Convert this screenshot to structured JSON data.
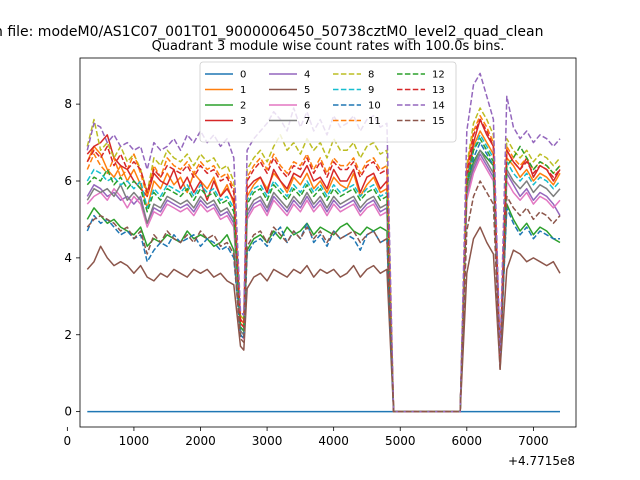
{
  "figure": {
    "suptitle": "n file: modeM0/AS1C07_001T01_9000006450_50738cztM0_level2_quad_clean",
    "title": "Quadrant 3 module wise count rates with 100.0s bins.",
    "x_offset_label": "+4.7715e8"
  },
  "chart_data": {
    "type": "line",
    "title": "Quadrant 3 module wise count rates with 100.0s bins.",
    "xlabel": "",
    "ylabel": "",
    "x_offset": 477150000,
    "xlim": [
      190,
      7640
    ],
    "ylim": [
      -0.4,
      9.2
    ],
    "xticks": [
      0,
      1000,
      2000,
      3000,
      4000,
      5000,
      6000,
      7000
    ],
    "yticks": [
      0,
      2,
      4,
      6,
      8
    ],
    "legend": {
      "placement": "top-center",
      "ncol": 4
    },
    "x": [
      300,
      400,
      500,
      600,
      700,
      800,
      900,
      1000,
      1100,
      1200,
      1300,
      1400,
      1500,
      1600,
      1700,
      1800,
      1900,
      2000,
      2100,
      2200,
      2300,
      2400,
      2500,
      2600,
      2650,
      2700,
      2800,
      2900,
      3000,
      3100,
      3200,
      3300,
      3400,
      3500,
      3600,
      3700,
      3800,
      3900,
      4000,
      4100,
      4200,
      4300,
      4400,
      4500,
      4600,
      4700,
      4800,
      4900,
      5000,
      5500,
      5900,
      6000,
      6100,
      6200,
      6300,
      6400,
      6500,
      6600,
      6700,
      6800,
      6900,
      7000,
      7100,
      7200,
      7300,
      7400
    ],
    "series": [
      {
        "name": "0",
        "color": "#1f77b4",
        "dash": false,
        "values": [
          0,
          0,
          0,
          0,
          0,
          0,
          0,
          0,
          0,
          0,
          0,
          0,
          0,
          0,
          0,
          0,
          0,
          0,
          0,
          0,
          0,
          0,
          0,
          0,
          0,
          0,
          0,
          0,
          0,
          0,
          0,
          0,
          0,
          0,
          0,
          0,
          0,
          0,
          0,
          0,
          0,
          0,
          0,
          0,
          0,
          0,
          0,
          0,
          0,
          0,
          0,
          0,
          0,
          0,
          0,
          0,
          0,
          0,
          0,
          0,
          0,
          0,
          0,
          0,
          0,
          0
        ]
      },
      {
        "name": "1",
        "color": "#ff7f0e",
        "dash": false,
        "values": [
          6.5,
          6.9,
          6.7,
          6.3,
          6.1,
          6.4,
          6.0,
          6.3,
          5.9,
          5.3,
          6.0,
          5.8,
          6.2,
          5.9,
          6.1,
          5.7,
          6.2,
          6.0,
          5.8,
          6.1,
          5.6,
          5.9,
          5.4,
          2.3,
          2.2,
          5.6,
          5.9,
          6.1,
          5.8,
          6.2,
          6.0,
          5.7,
          6.1,
          5.9,
          6.2,
          5.8,
          6.0,
          5.7,
          6.1,
          5.9,
          5.8,
          6.2,
          5.6,
          5.9,
          6.1,
          5.7,
          5.8,
          0,
          0,
          0,
          0,
          5.8,
          6.9,
          7.3,
          7.0,
          6.7,
          1.2,
          6.6,
          6.4,
          6.1,
          6.3,
          6.0,
          6.2,
          6.1,
          5.9,
          6.2
        ]
      },
      {
        "name": "2",
        "color": "#2ca02c",
        "dash": false,
        "values": [
          5.0,
          5.3,
          5.1,
          4.9,
          5.0,
          4.8,
          4.7,
          4.6,
          4.8,
          4.3,
          4.5,
          4.4,
          4.6,
          4.5,
          4.4,
          4.7,
          4.5,
          4.6,
          4.5,
          4.3,
          4.4,
          4.6,
          4.2,
          2.1,
          2.0,
          4.2,
          4.5,
          4.6,
          4.4,
          4.7,
          4.5,
          4.8,
          4.6,
          4.7,
          4.9,
          4.6,
          4.8,
          4.7,
          4.6,
          4.8,
          4.9,
          4.7,
          4.6,
          4.8,
          4.7,
          4.8,
          4.7,
          0,
          0,
          0,
          0,
          5.9,
          6.5,
          6.8,
          6.6,
          6.4,
          1.4,
          5.4,
          5.0,
          4.7,
          4.9,
          4.6,
          4.8,
          4.7,
          4.5,
          4.4
        ]
      },
      {
        "name": "3",
        "color": "#d62728",
        "dash": false,
        "values": [
          6.7,
          6.9,
          7.0,
          7.2,
          6.6,
          6.4,
          6.3,
          6.0,
          5.8,
          5.6,
          6.2,
          6.0,
          5.9,
          6.3,
          5.8,
          6.1,
          5.7,
          6.0,
          5.5,
          6.0,
          5.6,
          5.8,
          5.5,
          2.4,
          2.3,
          5.8,
          6.0,
          6.1,
          5.7,
          6.3,
          6.0,
          5.8,
          6.2,
          6.1,
          6.4,
          6.0,
          6.1,
          5.8,
          6.3,
          6.0,
          6.0,
          6.3,
          5.7,
          6.1,
          6.2,
          5.8,
          6.0,
          0,
          0,
          0,
          0,
          6.0,
          7.0,
          7.6,
          7.2,
          6.9,
          1.3,
          6.8,
          6.5,
          6.3,
          6.6,
          6.1,
          6.4,
          6.3,
          6.0,
          6.3
        ]
      },
      {
        "name": "4",
        "color": "#9467bd",
        "dash": false,
        "values": [
          5.6,
          5.9,
          5.8,
          5.6,
          5.7,
          5.5,
          5.6,
          5.4,
          5.6,
          4.9,
          5.3,
          5.2,
          5.5,
          5.4,
          5.3,
          5.4,
          5.2,
          5.5,
          5.3,
          5.4,
          5.1,
          5.2,
          4.9,
          2.0,
          1.9,
          5.1,
          5.4,
          5.5,
          5.2,
          5.6,
          5.4,
          5.2,
          5.5,
          5.3,
          5.6,
          5.3,
          5.5,
          5.2,
          5.5,
          5.3,
          5.4,
          5.5,
          5.2,
          5.4,
          5.5,
          5.2,
          5.3,
          0,
          0,
          0,
          0,
          5.6,
          6.3,
          6.7,
          6.4,
          6.1,
          1.2,
          6.2,
          5.9,
          5.6,
          5.8,
          5.5,
          5.7,
          5.6,
          5.4,
          5.1
        ]
      },
      {
        "name": "5",
        "color": "#8c564b",
        "dash": false,
        "values": [
          3.7,
          3.9,
          4.3,
          4.0,
          3.8,
          3.9,
          3.8,
          3.6,
          3.8,
          3.5,
          3.4,
          3.6,
          3.5,
          3.7,
          3.6,
          3.5,
          3.7,
          3.6,
          3.7,
          3.5,
          3.6,
          3.4,
          3.3,
          1.7,
          1.6,
          3.2,
          3.5,
          3.6,
          3.4,
          3.7,
          3.6,
          3.5,
          3.7,
          3.6,
          3.8,
          3.5,
          3.7,
          3.6,
          3.7,
          3.5,
          3.6,
          3.8,
          3.5,
          3.7,
          3.8,
          3.6,
          3.7,
          0,
          0,
          0,
          0,
          3.6,
          4.5,
          4.8,
          4.4,
          4.1,
          1.1,
          3.7,
          4.2,
          4.1,
          3.9,
          4.0,
          3.9,
          3.8,
          3.9,
          3.6
        ]
      },
      {
        "name": "6",
        "color": "#e377c2",
        "dash": false,
        "values": [
          5.4,
          5.6,
          5.7,
          5.5,
          5.8,
          5.6,
          5.3,
          5.6,
          5.4,
          4.8,
          5.2,
          5.1,
          5.4,
          5.3,
          5.2,
          5.3,
          5.1,
          5.4,
          5.2,
          5.3,
          5.0,
          5.1,
          4.8,
          2.0,
          1.9,
          5.0,
          5.3,
          5.4,
          5.1,
          5.5,
          5.3,
          5.1,
          5.4,
          5.2,
          5.5,
          5.2,
          5.4,
          5.1,
          5.4,
          5.2,
          5.3,
          5.4,
          5.1,
          5.3,
          5.4,
          5.1,
          5.2,
          0,
          0,
          0,
          0,
          5.5,
          6.2,
          6.6,
          6.3,
          6.0,
          1.2,
          6.0,
          5.7,
          5.5,
          5.7,
          5.4,
          5.6,
          5.5,
          5.3,
          5.5
        ]
      },
      {
        "name": "7",
        "color": "#7f7f7f",
        "dash": false,
        "values": [
          5.5,
          5.8,
          5.7,
          5.8,
          5.6,
          5.9,
          5.5,
          5.7,
          5.5,
          4.9,
          5.4,
          5.3,
          5.6,
          5.5,
          5.4,
          5.5,
          5.3,
          5.6,
          5.4,
          5.5,
          5.2,
          5.3,
          5.0,
          2.1,
          2.0,
          5.2,
          5.5,
          5.6,
          5.3,
          5.7,
          5.5,
          5.3,
          5.6,
          5.4,
          5.7,
          5.4,
          5.6,
          5.3,
          5.6,
          5.4,
          5.5,
          5.6,
          5.3,
          5.5,
          5.6,
          5.3,
          5.4,
          0,
          0,
          0,
          0,
          5.7,
          6.4,
          6.8,
          6.5,
          6.2,
          1.2,
          6.3,
          6.0,
          5.8,
          6.0,
          5.7,
          5.9,
          5.8,
          5.6,
          5.8
        ]
      },
      {
        "name": "8",
        "color": "#bcbd22",
        "dash": true,
        "values": [
          6.9,
          7.6,
          6.8,
          7.0,
          6.6,
          6.9,
          6.5,
          6.7,
          6.3,
          5.7,
          6.6,
          6.4,
          6.8,
          6.6,
          6.5,
          6.7,
          6.4,
          6.7,
          6.5,
          6.6,
          6.3,
          6.4,
          6.0,
          2.5,
          2.4,
          6.3,
          6.6,
          6.8,
          6.5,
          6.9,
          7.2,
          6.8,
          7.0,
          6.7,
          7.1,
          6.8,
          7.0,
          6.6,
          7.1,
          6.8,
          6.8,
          7.0,
          6.6,
          6.9,
          7.0,
          6.7,
          6.8,
          0,
          0,
          0,
          0,
          6.4,
          7.5,
          7.9,
          7.6,
          7.2,
          1.4,
          7.1,
          6.8,
          6.6,
          6.8,
          6.5,
          6.7,
          6.6,
          6.4,
          6.6
        ]
      },
      {
        "name": "9",
        "color": "#17becf",
        "dash": true,
        "values": [
          6.0,
          6.3,
          6.2,
          6.0,
          6.1,
          5.9,
          6.0,
          5.8,
          6.0,
          5.3,
          5.8,
          5.6,
          5.9,
          5.8,
          5.7,
          5.9,
          5.6,
          5.9,
          5.7,
          5.8,
          5.5,
          5.6,
          5.3,
          2.2,
          2.1,
          5.5,
          5.8,
          5.9,
          5.6,
          6.0,
          5.8,
          5.6,
          5.9,
          5.7,
          6.0,
          5.7,
          5.9,
          5.6,
          5.9,
          5.7,
          5.8,
          5.9,
          5.6,
          5.8,
          5.9,
          5.6,
          5.7,
          0,
          0,
          0,
          0,
          6.0,
          6.8,
          7.2,
          6.9,
          6.6,
          1.3,
          6.5,
          6.2,
          6.0,
          6.2,
          5.9,
          6.1,
          6.0,
          5.8,
          6.0
        ]
      },
      {
        "name": "10",
        "color": "#1f77b4",
        "dash": true,
        "values": [
          4.7,
          5.1,
          4.9,
          5.0,
          4.8,
          4.6,
          4.7,
          4.5,
          4.6,
          3.9,
          4.2,
          4.4,
          4.3,
          4.6,
          4.4,
          4.5,
          4.6,
          4.3,
          4.5,
          4.4,
          4.2,
          4.3,
          4.0,
          2.0,
          1.9,
          4.1,
          4.4,
          4.5,
          4.3,
          4.6,
          4.8,
          4.4,
          4.7,
          4.5,
          4.9,
          4.4,
          4.6,
          4.3,
          4.7,
          4.5,
          4.6,
          4.5,
          4.2,
          4.6,
          4.7,
          4.4,
          4.5,
          0,
          0,
          0,
          0,
          5.9,
          6.6,
          7.0,
          6.7,
          6.4,
          1.3,
          5.3,
          4.9,
          4.6,
          4.8,
          4.5,
          4.7,
          4.6,
          4.5,
          4.5
        ]
      },
      {
        "name": "11",
        "color": "#ff7f0e",
        "dash": true,
        "values": [
          6.3,
          6.7,
          6.4,
          6.2,
          6.6,
          6.1,
          6.3,
          6.7,
          6.2,
          5.6,
          6.4,
          6.1,
          6.6,
          6.4,
          6.3,
          6.5,
          6.2,
          6.5,
          6.3,
          6.4,
          6.1,
          6.2,
          5.8,
          2.4,
          2.3,
          6.1,
          6.4,
          6.6,
          6.3,
          6.7,
          6.4,
          6.2,
          6.5,
          6.4,
          6.7,
          6.3,
          6.6,
          6.2,
          6.6,
          6.4,
          6.4,
          6.6,
          6.2,
          6.5,
          6.6,
          6.3,
          6.4,
          0,
          0,
          0,
          0,
          6.3,
          7.3,
          7.7,
          7.4,
          7.0,
          1.4,
          6.9,
          6.6,
          6.4,
          6.6,
          6.3,
          6.5,
          6.4,
          6.2,
          6.4
        ]
      },
      {
        "name": "12",
        "color": "#2ca02c",
        "dash": true,
        "values": [
          5.9,
          6.1,
          6.0,
          6.3,
          5.9,
          6.1,
          5.8,
          6.0,
          5.8,
          5.2,
          5.7,
          5.5,
          5.8,
          5.7,
          5.6,
          5.8,
          5.5,
          5.8,
          5.6,
          5.7,
          5.4,
          5.5,
          5.2,
          2.2,
          2.1,
          5.4,
          5.7,
          5.8,
          5.5,
          5.9,
          5.7,
          5.5,
          5.8,
          5.6,
          5.9,
          5.6,
          5.8,
          5.5,
          5.8,
          5.6,
          5.7,
          5.8,
          5.5,
          5.7,
          5.8,
          5.5,
          5.6,
          0,
          0,
          0,
          0,
          5.9,
          6.8,
          7.1,
          6.8,
          6.5,
          1.3,
          6.4,
          6.6,
          6.9,
          6.6,
          6.3,
          6.5,
          6.4,
          6.2,
          6.4
        ]
      },
      {
        "name": "13",
        "color": "#d62728",
        "dash": true,
        "values": [
          6.5,
          6.8,
          6.6,
          6.9,
          6.4,
          6.7,
          6.3,
          6.5,
          6.3,
          5.7,
          6.3,
          6.1,
          6.4,
          6.3,
          6.2,
          6.4,
          6.1,
          6.4,
          6.2,
          6.3,
          6.0,
          6.1,
          5.7,
          2.3,
          2.2,
          6.0,
          6.3,
          6.5,
          6.2,
          6.6,
          6.3,
          6.1,
          6.4,
          6.3,
          6.6,
          6.2,
          6.5,
          6.1,
          6.5,
          6.3,
          6.3,
          6.5,
          6.1,
          6.4,
          6.5,
          6.2,
          6.3,
          0,
          0,
          0,
          0,
          6.2,
          7.2,
          7.6,
          7.3,
          6.9,
          1.3,
          6.8,
          6.5,
          6.3,
          6.5,
          6.2,
          6.4,
          6.3,
          6.1,
          6.3
        ]
      },
      {
        "name": "14",
        "color": "#9467bd",
        "dash": true,
        "values": [
          6.8,
          7.5,
          7.4,
          7.0,
          7.2,
          6.9,
          7.0,
          6.8,
          6.9,
          6.3,
          7.0,
          6.8,
          6.9,
          7.1,
          6.8,
          7.2,
          7.0,
          7.3,
          7.0,
          7.2,
          6.9,
          7.1,
          6.6,
          2.6,
          2.5,
          6.8,
          7.1,
          7.3,
          7.5,
          7.8,
          7.6,
          7.3,
          7.9,
          7.4,
          7.8,
          7.3,
          7.6,
          7.2,
          7.7,
          7.4,
          7.5,
          7.7,
          7.3,
          7.6,
          7.7,
          7.4,
          7.5,
          0,
          0,
          0,
          0,
          7.3,
          8.5,
          8.8,
          8.2,
          7.6,
          1.5,
          8.2,
          7.4,
          7.1,
          7.3,
          7.0,
          7.2,
          7.1,
          6.9,
          7.1
        ]
      },
      {
        "name": "15",
        "color": "#8c564b",
        "dash": true,
        "values": [
          4.8,
          5.0,
          5.1,
          5.0,
          4.9,
          4.7,
          4.8,
          4.5,
          4.7,
          4.1,
          4.6,
          4.4,
          4.7,
          4.5,
          4.4,
          4.6,
          4.4,
          4.7,
          4.5,
          4.6,
          4.3,
          4.4,
          4.1,
          1.9,
          1.8,
          4.3,
          4.6,
          4.7,
          4.4,
          4.8,
          4.6,
          4.4,
          4.7,
          4.5,
          4.8,
          4.5,
          4.7,
          4.4,
          4.7,
          4.5,
          4.6,
          4.7,
          4.4,
          4.6,
          4.7,
          4.4,
          4.5,
          0,
          0,
          0,
          0,
          4.7,
          5.6,
          6.0,
          5.7,
          5.4,
          1.1,
          5.6,
          5.3,
          5.1,
          5.3,
          5.0,
          5.2,
          5.1,
          4.9,
          5.1
        ]
      }
    ]
  }
}
